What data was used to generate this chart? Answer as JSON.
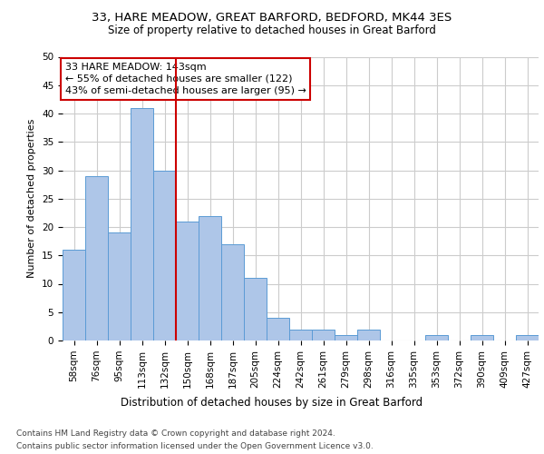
{
  "title1": "33, HARE MEADOW, GREAT BARFORD, BEDFORD, MK44 3ES",
  "title2": "Size of property relative to detached houses in Great Barford",
  "xlabel": "Distribution of detached houses by size in Great Barford",
  "ylabel": "Number of detached properties",
  "categories": [
    "58sqm",
    "76sqm",
    "95sqm",
    "113sqm",
    "132sqm",
    "150sqm",
    "168sqm",
    "187sqm",
    "205sqm",
    "224sqm",
    "242sqm",
    "261sqm",
    "279sqm",
    "298sqm",
    "316sqm",
    "335sqm",
    "353sqm",
    "372sqm",
    "390sqm",
    "409sqm",
    "427sqm"
  ],
  "values": [
    16,
    29,
    19,
    41,
    30,
    21,
    22,
    17,
    11,
    4,
    2,
    2,
    1,
    2,
    0,
    0,
    1,
    0,
    1,
    0,
    1
  ],
  "bar_color": "#aec6e8",
  "bar_edgecolor": "#5b9bd5",
  "vline_x": 4.5,
  "vline_color": "#cc0000",
  "annotation_text": "33 HARE MEADOW: 143sqm\n← 55% of detached houses are smaller (122)\n43% of semi-detached houses are larger (95) →",
  "annotation_box_color": "#ffffff",
  "annotation_box_edgecolor": "#cc0000",
  "ylim": [
    0,
    50
  ],
  "yticks": [
    0,
    5,
    10,
    15,
    20,
    25,
    30,
    35,
    40,
    45,
    50
  ],
  "footer1": "Contains HM Land Registry data © Crown copyright and database right 2024.",
  "footer2": "Contains public sector information licensed under the Open Government Licence v3.0.",
  "background_color": "#ffffff",
  "grid_color": "#cccccc",
  "title1_fontsize": 9.5,
  "title2_fontsize": 8.5,
  "xlabel_fontsize": 8.5,
  "ylabel_fontsize": 8,
  "tick_fontsize": 7.5,
  "annotation_fontsize": 8,
  "footer_fontsize": 6.5
}
